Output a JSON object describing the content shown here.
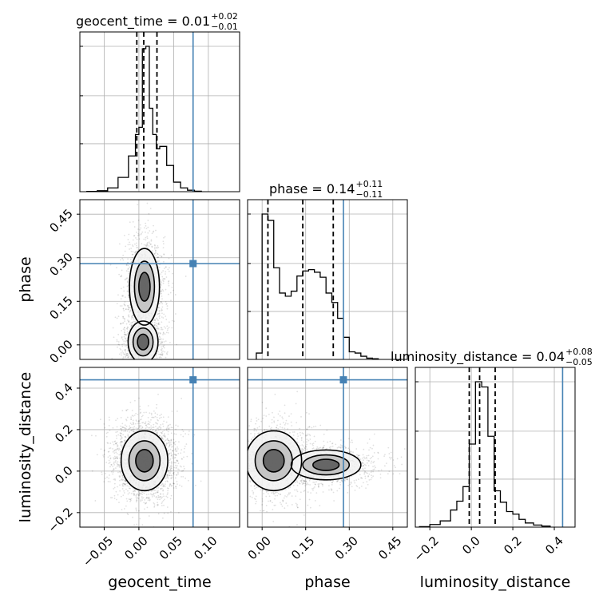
{
  "chart_data": {
    "type": "corner",
    "parameters": [
      {
        "key": "geocent_time",
        "label": "geocent_time"
      },
      {
        "key": "phase",
        "label": "phase"
      },
      {
        "key": "luminosity_distance",
        "label": "luminosity_distance"
      }
    ],
    "truths": {
      "geocent_time": 0.078,
      "phase": 0.28,
      "luminosity_distance": 0.44
    },
    "truth_color": "#4682b4",
    "grid": true,
    "axes": {
      "geocent_time": {
        "range": [
          -0.085,
          0.145
        ],
        "ticks": [
          "−0.05",
          "0.00",
          "0.05",
          "0.10"
        ],
        "tick_values": [
          -0.05,
          0.0,
          0.05,
          0.1
        ]
      },
      "phase": {
        "range": [
          -0.05,
          0.5
        ],
        "ticks": [
          "0.00",
          "0.15",
          "0.30",
          "0.45"
        ],
        "tick_values": [
          0.0,
          0.15,
          0.3,
          0.45
        ]
      },
      "luminosity_distance": {
        "range": [
          -0.27,
          0.5
        ],
        "ticks": [
          "−0.2",
          "0.0",
          "0.2",
          "0.4"
        ],
        "tick_values": [
          -0.2,
          0.0,
          0.2,
          0.4
        ]
      }
    },
    "titles": [
      {
        "param": "phase",
        "text": "phase = 0.14",
        "sup": "+0.11",
        "sub": "−0.11"
      },
      {
        "param": "luminosity_distance",
        "text": "luminosity_distance = 0.04",
        "sup": "+0.08",
        "sub": "−0.05"
      },
      {
        "param": "geocent_time",
        "text": "geocent_time = 0.01",
        "sup": "+0.02",
        "sub": "−0.01"
      }
    ],
    "quantiles": {
      "geocent_time": [
        -0.003,
        0.007,
        0.026
      ],
      "phase": [
        0.02,
        0.14,
        0.245
      ],
      "luminosity_distance": [
        -0.01,
        0.04,
        0.115
      ]
    },
    "histograms": {
      "geocent_time": {
        "edges": [
          -0.075,
          -0.06,
          -0.045,
          -0.03,
          -0.015,
          -0.005,
          0.0,
          0.005,
          0.01,
          0.015,
          0.02,
          0.025,
          0.03,
          0.04,
          0.05,
          0.06,
          0.07,
          0.08,
          0.09
        ],
        "counts": [
          0.005,
          0.02,
          0.08,
          0.3,
          0.75,
          1.2,
          1.35,
          3.0,
          3.05,
          1.75,
          1.2,
          0.9,
          0.95,
          0.55,
          0.2,
          0.08,
          0.03,
          0.01
        ]
      },
      "phase": {
        "edges": [
          -0.02,
          0.0,
          0.02,
          0.04,
          0.06,
          0.08,
          0.1,
          0.12,
          0.14,
          0.16,
          0.18,
          0.2,
          0.22,
          0.24,
          0.26,
          0.28,
          0.3,
          0.32,
          0.34,
          0.36,
          0.38,
          0.4
        ],
        "counts": [
          0.1,
          2.3,
          2.2,
          1.45,
          1.05,
          1.0,
          1.08,
          1.32,
          1.4,
          1.42,
          1.38,
          1.3,
          1.05,
          0.9,
          0.65,
          0.35,
          0.12,
          0.1,
          0.05,
          0.02,
          0.01
        ]
      },
      "luminosity_distance": {
        "edges": [
          -0.25,
          -0.2,
          -0.15,
          -0.1,
          -0.07,
          -0.04,
          -0.01,
          0.02,
          0.05,
          0.08,
          0.11,
          0.14,
          0.17,
          0.2,
          0.23,
          0.26,
          0.3,
          0.34,
          0.38
        ],
        "counts": [
          0.01,
          0.05,
          0.12,
          0.33,
          0.5,
          0.78,
          1.6,
          2.8,
          2.7,
          1.75,
          0.7,
          0.48,
          0.3,
          0.25,
          0.15,
          0.08,
          0.04,
          0.02
        ]
      }
    },
    "joint": {
      "phase|geocent_time": {
        "mode": "bimodal",
        "centers": [
          {
            "x": 0.008,
            "y": 0.2,
            "sx": 0.009,
            "sy": 0.055,
            "w": 1.0
          },
          {
            "x": 0.006,
            "y": 0.01,
            "sx": 0.009,
            "sy": 0.03,
            "w": 1.0
          }
        ]
      },
      "luminosity_distance|geocent_time": {
        "mode": "single",
        "centers": [
          {
            "x": 0.008,
            "y": 0.05,
            "sx": 0.014,
            "sy": 0.06,
            "w": 1.0
          }
        ]
      },
      "luminosity_distance|phase": {
        "mode": "elongated",
        "centers": [
          {
            "x": 0.04,
            "y": 0.05,
            "sx": 0.04,
            "sy": 0.06,
            "w": 1.0
          },
          {
            "x": 0.22,
            "y": 0.03,
            "sx": 0.05,
            "sy": 0.03,
            "w": 0.9
          }
        ]
      }
    }
  }
}
